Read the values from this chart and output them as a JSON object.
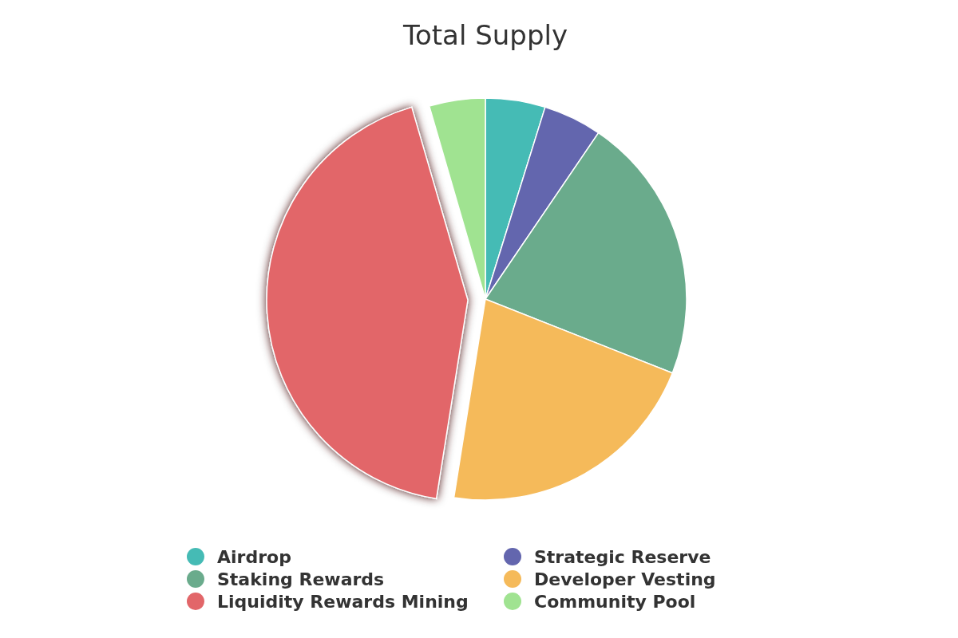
{
  "chart_data": {
    "type": "pie",
    "title": "Total Supply",
    "categories": [
      "Airdrop",
      "Strategic Reserve",
      "Staking Rewards",
      "Developer Vesting",
      "Liquidity Rewards Mining",
      "Community Pool"
    ],
    "values": [
      4.8,
      4.7,
      21.5,
      21.5,
      43,
      4.5
    ],
    "colors": [
      "#45bbb5",
      "#6366ae",
      "#6aab8c",
      "#f5ba5a",
      "#e26669",
      "#a0e391"
    ],
    "legend": "bottom"
  }
}
